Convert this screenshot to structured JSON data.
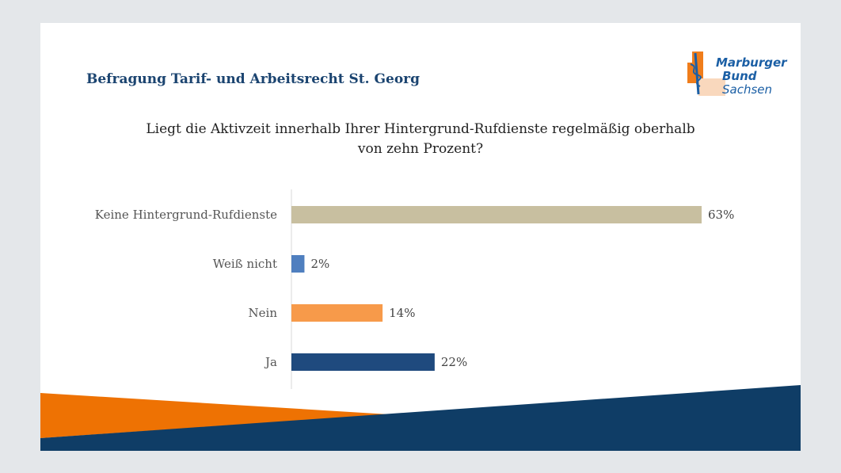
{
  "header": {
    "title": "Befragung Tarif- und Arbeitsrecht St. Georg"
  },
  "logo": {
    "line1": "Marburger",
    "line2": "Bund",
    "line3": "Sachsen"
  },
  "chart_data": {
    "type": "bar",
    "orientation": "horizontal",
    "title": "Liegt die Aktivzeit innerhalb Ihrer Hintergrund-Rufdienste regelmäßig oberhalb von zehn Prozent?",
    "categories": [
      "Keine Hintergrund-Rufdienste",
      "Weiß nicht",
      "Nein",
      "Ja"
    ],
    "values": [
      63,
      2,
      14,
      22
    ],
    "labels": [
      "63%",
      "2%",
      "14%",
      "22%"
    ],
    "colors": [
      "#c8bfa0",
      "#4f7fbf",
      "#f79a4a",
      "#1f4a7e"
    ],
    "unit": "%",
    "xlim": [
      0,
      100
    ],
    "grid": false,
    "legend": "none"
  },
  "colors": {
    "accent_orange": "#ee7203",
    "accent_navy": "#0f3d66",
    "title_blue": "#1b4470"
  }
}
